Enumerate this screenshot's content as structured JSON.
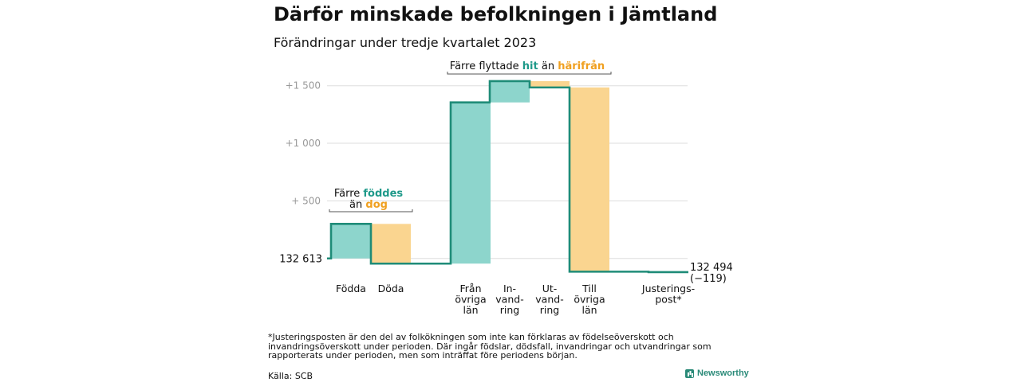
{
  "chart_data": {
    "type": "bar",
    "subtype": "waterfall",
    "title": "Därför minskade befolkningen i Jämtland",
    "subtitle": "Förändringar under tredje kvartalet 2023",
    "start_label": "132   613",
    "end_label": "132 494",
    "end_change_label": "(−119)",
    "yticks": [
      {
        "value": 500,
        "label": "+   500"
      },
      {
        "value": 1000,
        "label": "+1   000"
      },
      {
        "value": 1500,
        "label": "+1   500"
      }
    ],
    "ylim": [
      -140,
      1650
    ],
    "steps": [
      {
        "category_lines": [
          "Födda"
        ],
        "change": 300
      },
      {
        "category_lines": [
          "Döda"
        ],
        "change": -345
      },
      {
        "category_lines": [
          "Från",
          "övriga",
          "län"
        ],
        "change": 1400
      },
      {
        "category_lines": [
          "In-",
          "vand-",
          "ring"
        ],
        "change": 185
      },
      {
        "category_lines": [
          "Ut-",
          "vand-",
          "ring"
        ],
        "change": -55
      },
      {
        "category_lines": [
          "Till",
          "övriga",
          "län"
        ],
        "change": -1600
      },
      {
        "category_lines": [
          "Justerings-",
          "post*"
        ],
        "change": -4
      }
    ],
    "annotations": [
      {
        "line1_prefix": "Färre ",
        "line1_highlight": "föddes",
        "line2_prefix": "än ",
        "line2_highlight": "dog"
      },
      {
        "prefix": "Färre flyttade ",
        "highlight1": "hit",
        "middle": " än ",
        "highlight2": "härifrån"
      }
    ],
    "colors": {
      "increase": "#8dd5cc",
      "decrease": "#fad590",
      "line": "#1f8c78",
      "highlight_in": "#1f9a8a",
      "highlight_out": "#f0a020",
      "grid": "#dddddd",
      "tick": "#999999"
    },
    "grid": true,
    "legend": "none"
  },
  "footnote": "*Justeringsposten är den del av folkökningen som inte kan förklaras av födelseöverskott och invandringsöverskott under perioden. Där ingår födslar, dödsfall, invandringar och utvandringar som rapporterats under perioden, men som inträffat före periodens början.",
  "source": "Källa: SCB",
  "brand": "Newsworthy"
}
